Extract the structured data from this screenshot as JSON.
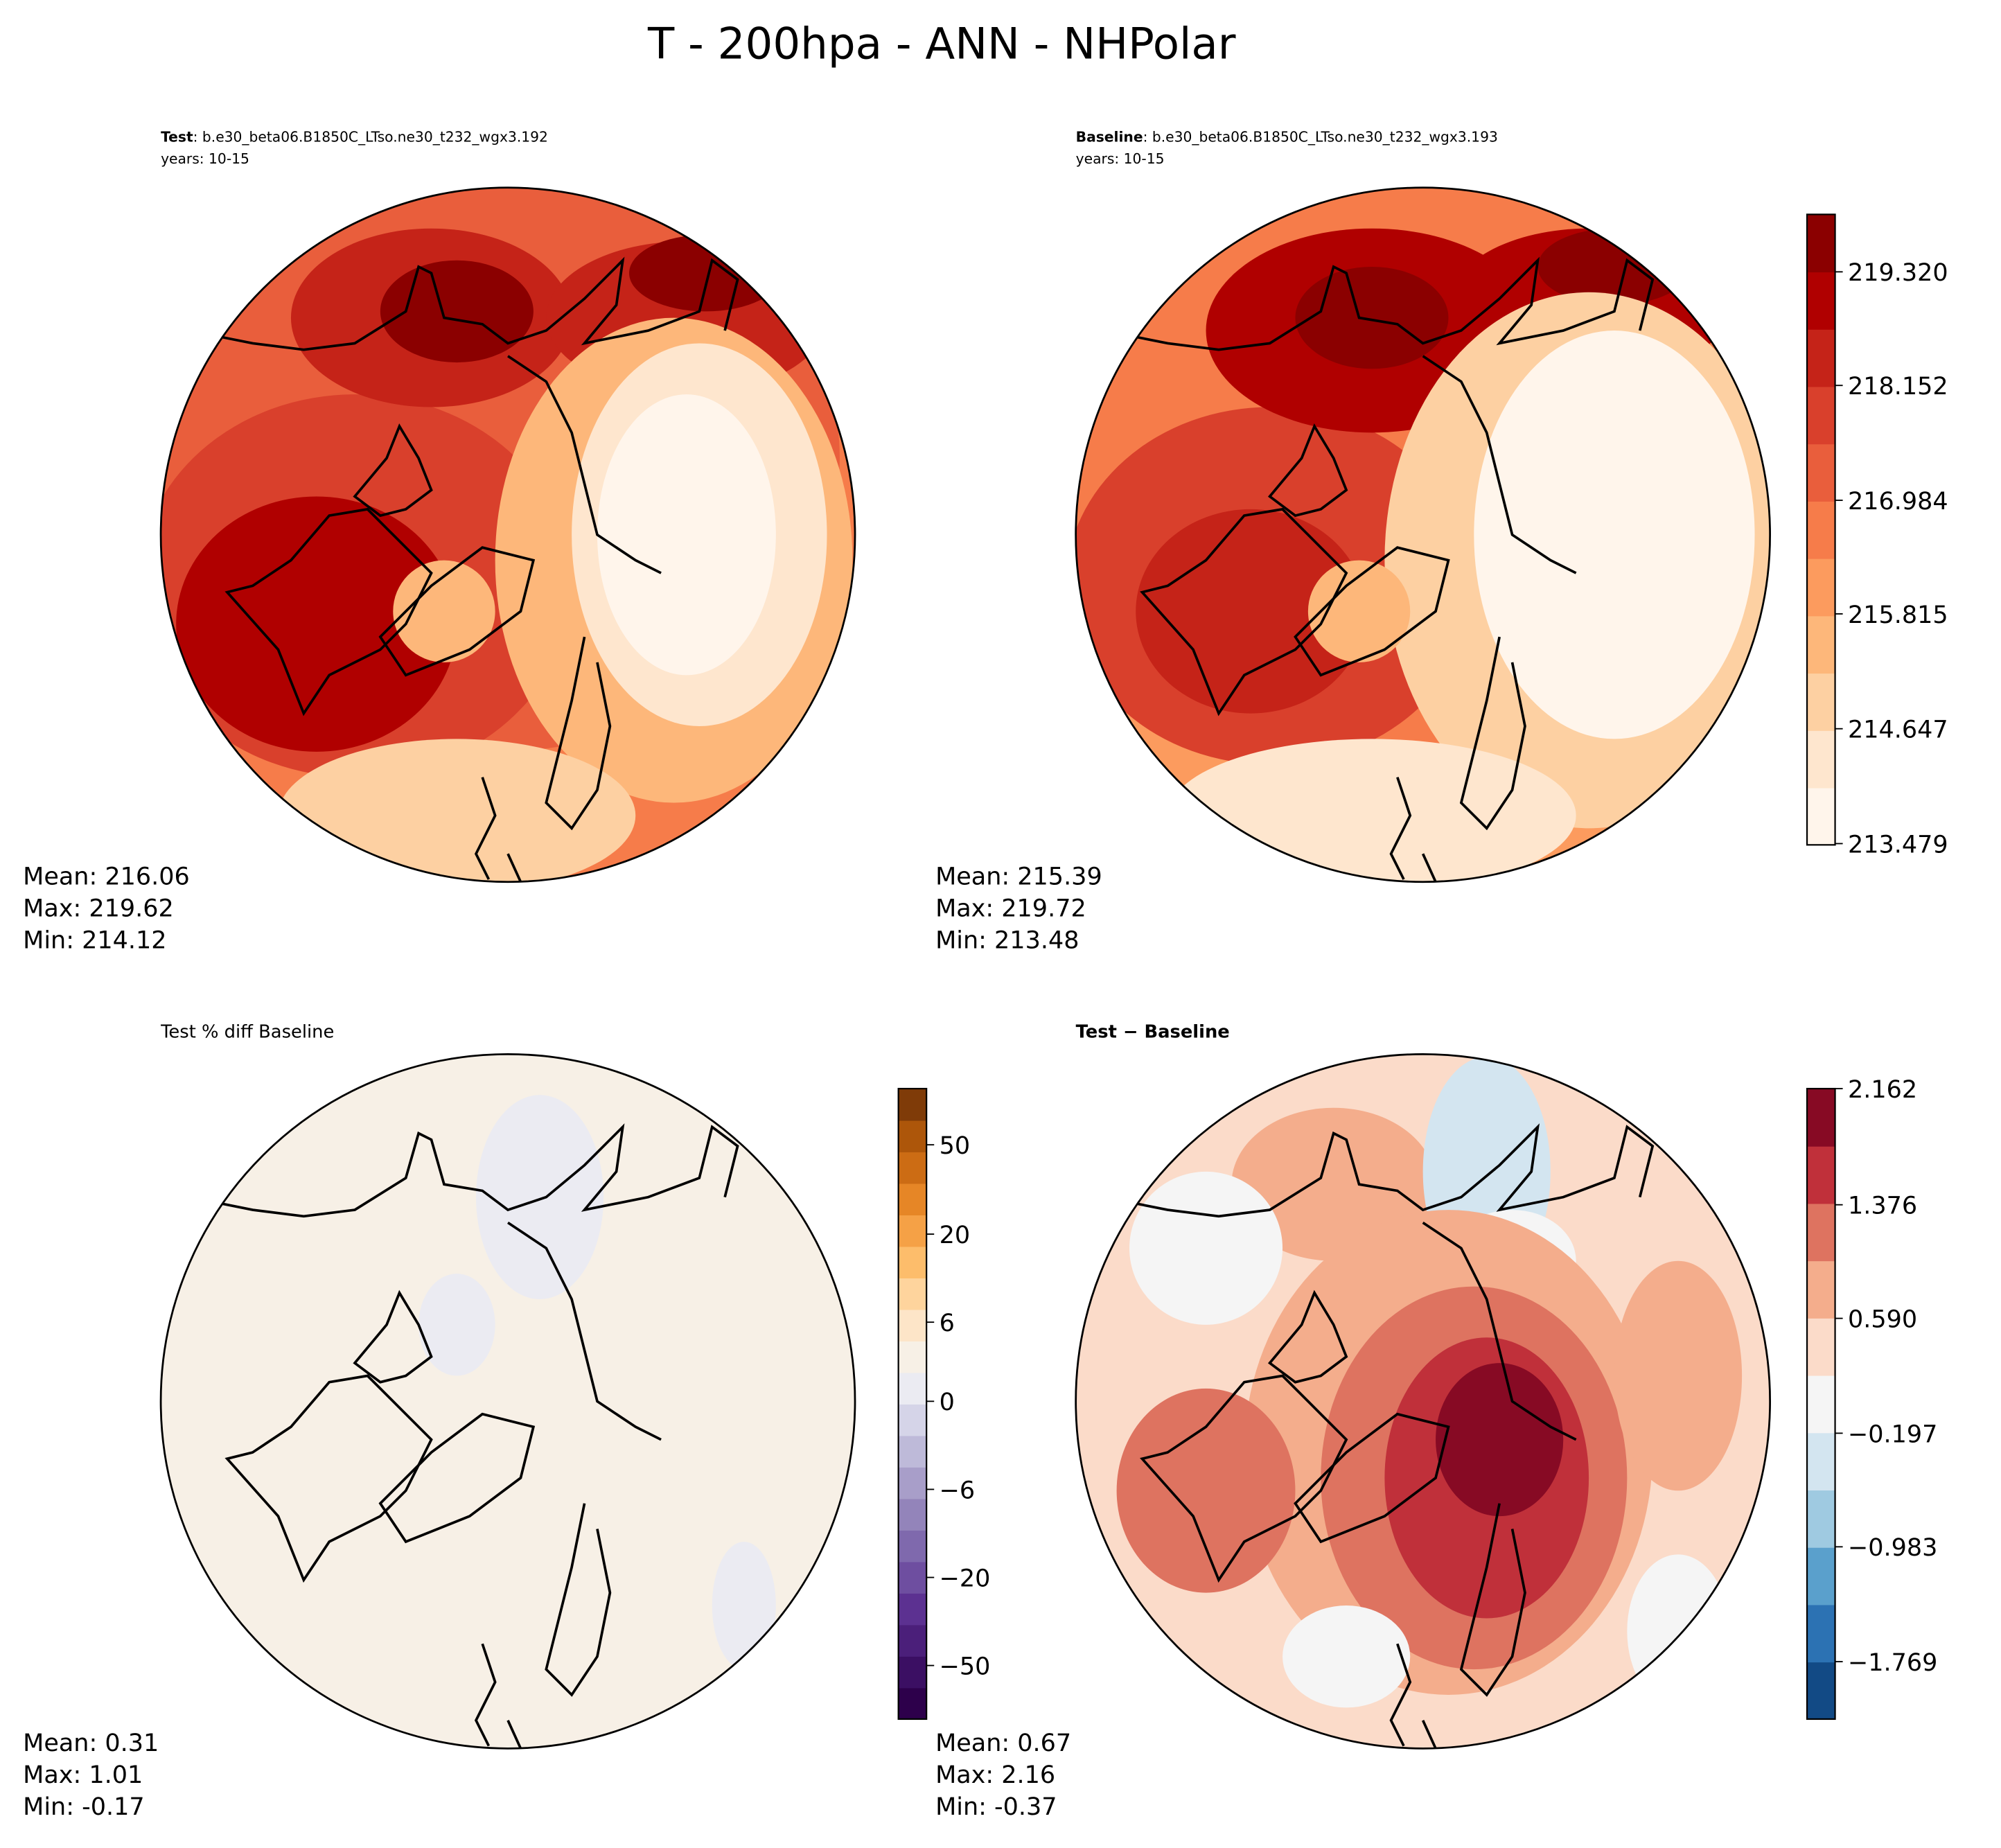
{
  "title": "T - 200hpa - ANN - NHPolar",
  "chart_data": [
    {
      "type": "heatmap",
      "projection": "north-polar-stereographic",
      "label_bold": "Test",
      "label_rest": ": b.e30_beta06.B1850C_LTso.ne30_t232_wgx3.192",
      "years": "years: 10-15",
      "stats": {
        "mean": "Mean: 216.06",
        "max": "Max: 219.62",
        "min": "Min: 214.12"
      },
      "colors": [
        "#fff5eb",
        "#fee6ce",
        "#fdd0a2",
        "#fdb77a",
        "#fc9b5e",
        "#f67c4a",
        "#e95e3c",
        "#d9402c",
        "#c52318",
        "#b00000",
        "#8b0000"
      ]
    },
    {
      "type": "heatmap",
      "projection": "north-polar-stereographic",
      "label_bold": "Baseline",
      "label_rest": ": b.e30_beta06.B1850C_LTso.ne30_t232_wgx3.193",
      "years": "years: 10-15",
      "stats": {
        "mean": "Mean: 215.39",
        "max": "Max: 219.72",
        "min": "Min: 213.48"
      },
      "colorbar": {
        "ticks": [
          "219.320",
          "218.152",
          "216.984",
          "215.815",
          "214.647",
          "213.479"
        ],
        "tick_values": [
          219.32,
          218.152,
          216.984,
          215.815,
          214.647,
          213.479
        ],
        "range": [
          213.479,
          219.904
        ],
        "colors": [
          "#fff5eb",
          "#fee6ce",
          "#fdd0a2",
          "#fdb77a",
          "#fc9b5e",
          "#f67c4a",
          "#e95e3c",
          "#d9402c",
          "#c52318",
          "#b00000",
          "#8b0000"
        ]
      }
    },
    {
      "type": "heatmap",
      "projection": "north-polar-stereographic",
      "label_plain": "Test % diff Baseline",
      "stats": {
        "mean": "Mean:  0.31",
        "max": "Max:  1.01",
        "min": "Min: -0.17"
      },
      "colorbar": {
        "ticks": [
          "50",
          "20",
          "6",
          "0",
          "−6",
          "−20",
          "−50"
        ],
        "colors": [
          "#2d004b",
          "#3b0f63",
          "#4b1f7a",
          "#5c3191",
          "#6e4ea0",
          "#7f69ad",
          "#9384ba",
          "#a89ec9",
          "#bebad9",
          "#d5d4e8",
          "#ebebf2",
          "#f7f0e6",
          "#fde5c8",
          "#fed49d",
          "#fdbd6b",
          "#f5a146",
          "#e68626",
          "#cc6c14",
          "#ad560a",
          "#7f3b08"
        ]
      }
    },
    {
      "type": "heatmap",
      "projection": "north-polar-stereographic",
      "label_bold": "Test − Baseline",
      "stats": {
        "mean": "Mean:  0.67",
        "max": "Max:  2.16",
        "min": "Min: -0.37"
      },
      "colorbar": {
        "ticks": [
          "2.162",
          "1.376",
          "0.590",
          "−0.197",
          "−0.983",
          "−1.769"
        ],
        "range": [
          -2.162,
          2.162
        ],
        "colors": [
          "#124a85",
          "#2c72b3",
          "#5aa0cc",
          "#9fcae1",
          "#d3e5f0",
          "#f5f5f5",
          "#fbdbc9",
          "#f4ad8c",
          "#de7360",
          "#c0303a",
          "#870a24"
        ]
      }
    }
  ]
}
